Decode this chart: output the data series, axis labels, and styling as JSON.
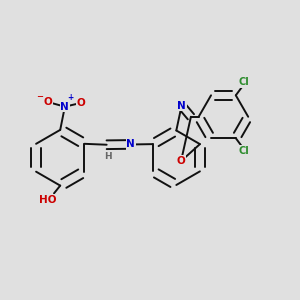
{
  "background_color": "#e0e0e0",
  "bond_color": "#111111",
  "bond_width": 1.4,
  "atom_colors": {
    "N": "#0000cc",
    "O": "#cc0000",
    "Cl": "#2d8c2d",
    "H": "#666666",
    "C": "#111111"
  },
  "font_size_atom": 7.5,
  "font_size_cl": 7.0,
  "font_size_h": 6.5
}
